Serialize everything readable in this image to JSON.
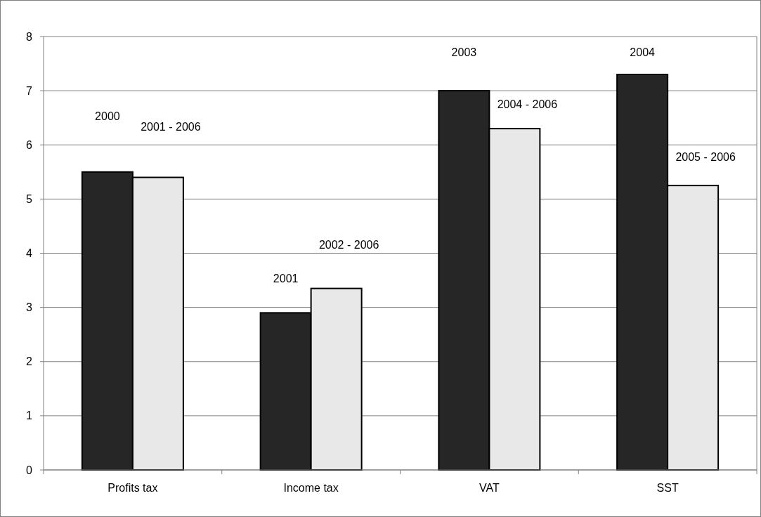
{
  "chart_data": {
    "type": "bar",
    "categories": [
      "Profits tax",
      "Income tax",
      "VAT",
      "SST"
    ],
    "series": [
      {
        "color": "#262626",
        "values": [
          5.5,
          2.9,
          7.0,
          7.3
        ]
      },
      {
        "color": "#e8e8e8",
        "values": [
          5.4,
          3.35,
          6.3,
          5.25
        ]
      }
    ],
    "ylim": [
      0,
      8
    ],
    "yticks": [
      0,
      1,
      2,
      3,
      4,
      5,
      6,
      7,
      8
    ],
    "grid": "y",
    "annotations": [
      "2000",
      "2001 - 2006",
      "2001",
      "2002 - 2006",
      "2003",
      "2004 - 2006",
      "2004",
      "2005 - 2006"
    ]
  }
}
